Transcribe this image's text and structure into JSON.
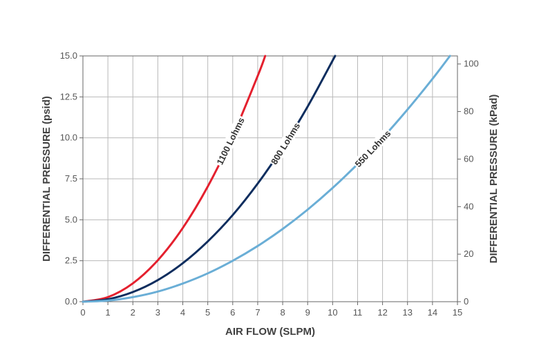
{
  "chart_data": {
    "type": "line",
    "xlabel": "AIR FLOW (SLPM)",
    "ylabel": "DIFFERENTIAL PRESSURE (psid)",
    "y2label": "DIFFERENTIAL PRESSURE (kPad)",
    "xlim": [
      0,
      15
    ],
    "ylim": [
      0,
      15
    ],
    "y2lim": [
      0,
      103.4
    ],
    "x_ticks": [
      "0",
      "1",
      "2",
      "3",
      "4",
      "5",
      "6",
      "7",
      "8",
      "9",
      "10",
      "11",
      "12",
      "13",
      "14",
      "15"
    ],
    "y_ticks": [
      "0.0",
      "2.5",
      "5.0",
      "7.5",
      "10.0",
      "12.5",
      "15.0"
    ],
    "y2_ticks": [
      "0",
      "20",
      "40",
      "60",
      "80",
      "100"
    ],
    "grid": true,
    "series": [
      {
        "name": "1100 Lohms",
        "color": "#e4202e",
        "x": [
          0,
          1,
          2,
          3,
          4,
          5,
          6,
          7,
          7.3
        ],
        "y": [
          0,
          0.28,
          1.12,
          2.53,
          4.5,
          7.03,
          10.12,
          13.78,
          15.0
        ]
      },
      {
        "name": "800 Lohms",
        "color": "#0d2d5e",
        "x": [
          0,
          1,
          2,
          3,
          4,
          5,
          6,
          7,
          8,
          9,
          10.1
        ],
        "y": [
          0,
          0.15,
          0.59,
          1.32,
          2.35,
          3.68,
          5.29,
          7.21,
          9.41,
          11.91,
          15.0
        ]
      },
      {
        "name": "550 Lohms",
        "color": "#6aaed6",
        "x": [
          0,
          1,
          2,
          3,
          4,
          5,
          6,
          7,
          8,
          9,
          10,
          11,
          12,
          13,
          14,
          14.7
        ],
        "y": [
          0,
          0.07,
          0.28,
          0.62,
          1.11,
          1.73,
          2.5,
          3.4,
          4.44,
          5.62,
          6.94,
          8.4,
          9.99,
          11.73,
          13.6,
          15.0
        ]
      }
    ]
  }
}
